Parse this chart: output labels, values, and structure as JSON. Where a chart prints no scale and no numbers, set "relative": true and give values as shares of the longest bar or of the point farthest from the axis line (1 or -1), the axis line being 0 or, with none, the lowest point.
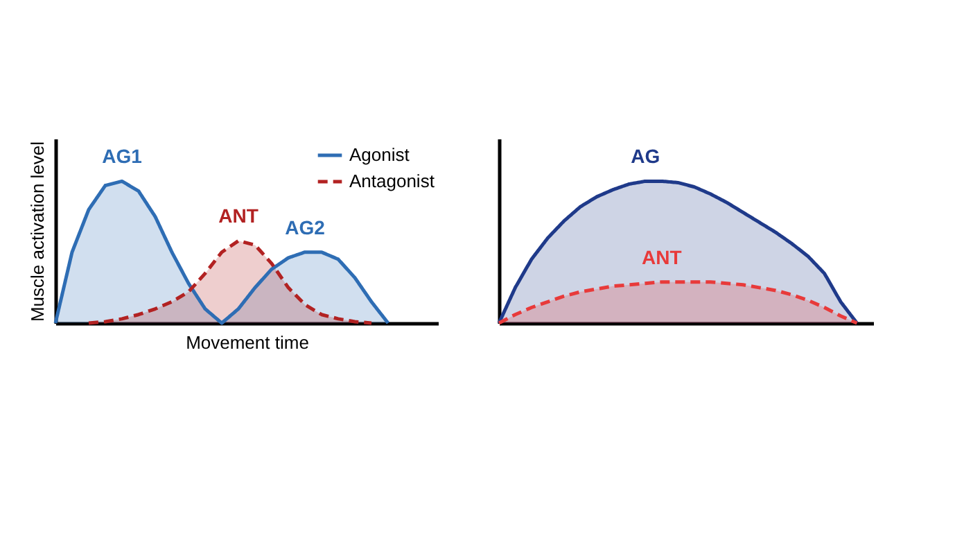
{
  "chart_data": [
    {
      "type": "area",
      "relative": true,
      "xlabel": "Movement time",
      "ylabel": "Muscle activation level",
      "legend": "top right",
      "categories": [
        null,
        null,
        null,
        null,
        null,
        null,
        null,
        null,
        null,
        null,
        null,
        null,
        null,
        null,
        null,
        null,
        null,
        null,
        null,
        null,
        null,
        null,
        null,
        null
      ],
      "series": [
        {
          "name": "Agonist",
          "color": "#2e6db4",
          "line_style": "solid",
          "values": [
            0,
            0.5,
            0.8,
            0.97,
            1.0,
            0.93,
            0.75,
            0.5,
            0.28,
            0.1,
            0,
            0.1,
            0.25,
            0.38,
            0.46,
            0.5,
            0.5,
            0.45,
            0.32,
            0.15,
            0,
            null,
            null,
            null
          ]
        },
        {
          "name": "Antagonist",
          "color": "#b22222",
          "line_style": "dashed",
          "values": [
            null,
            null,
            0,
            0.01,
            0.03,
            0.06,
            0.1,
            0.15,
            0.22,
            0.35,
            0.5,
            0.58,
            0.55,
            0.42,
            0.25,
            0.13,
            0.06,
            0.03,
            0.01,
            0,
            null,
            null,
            null,
            null
          ]
        }
      ],
      "annotations": [
        "AG1",
        "ANT",
        "AG2"
      ]
    },
    {
      "type": "area",
      "relative": true,
      "legend": false,
      "categories": [
        null,
        null,
        null,
        null,
        null,
        null,
        null,
        null,
        null,
        null,
        null,
        null,
        null,
        null,
        null,
        null,
        null,
        null,
        null,
        null,
        null,
        null,
        null,
        null
      ],
      "series": [
        {
          "name": "AG",
          "color": "#1f3a8a",
          "line_style": "solid",
          "values": [
            0,
            0.25,
            0.45,
            0.6,
            0.72,
            0.82,
            0.89,
            0.94,
            0.98,
            1.0,
            1.0,
            0.99,
            0.96,
            0.91,
            0.85,
            0.78,
            0.71,
            0.64,
            0.56,
            0.47,
            0.35,
            0.15,
            0,
            null
          ]
        },
        {
          "name": "ANT",
          "color": "#e83a3a",
          "line_style": "dashed",
          "values": [
            0,
            0.06,
            0.11,
            0.15,
            0.19,
            0.22,
            0.24,
            0.26,
            0.27,
            0.28,
            0.29,
            0.29,
            0.29,
            0.29,
            0.28,
            0.27,
            0.25,
            0.23,
            0.2,
            0.16,
            0.11,
            0.05,
            0,
            null
          ]
        }
      ]
    }
  ]
}
